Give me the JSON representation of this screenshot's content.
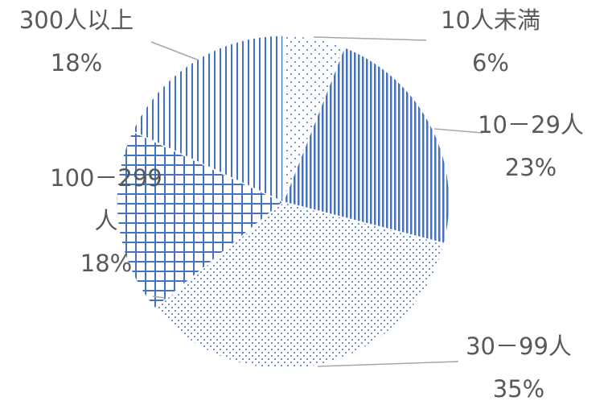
{
  "chart_data": {
    "type": "pie",
    "title": "",
    "start_angle_deg": 0,
    "direction": "clockwise",
    "legend": "none",
    "colors": {
      "accent": "#4472C4",
      "line": "#a6a6a6",
      "text": "#595959"
    },
    "slices": [
      {
        "label": "10人未満",
        "percent_label": "6%",
        "value": 6,
        "pattern": "dots-sparse"
      },
      {
        "label": "10－29人",
        "percent_label": "23%",
        "value": 23,
        "pattern": "vertical-dense"
      },
      {
        "label": "30－99人",
        "percent_label": "35%",
        "value": 35,
        "pattern": "dots-dense"
      },
      {
        "label": "100－299 人",
        "label_lines": [
          "100－299",
          "人"
        ],
        "percent_label": "18%",
        "value": 18,
        "pattern": "grid"
      },
      {
        "label": "300人以上",
        "percent_label": "18%",
        "value": 18,
        "pattern": "vertical-sparse"
      }
    ]
  }
}
